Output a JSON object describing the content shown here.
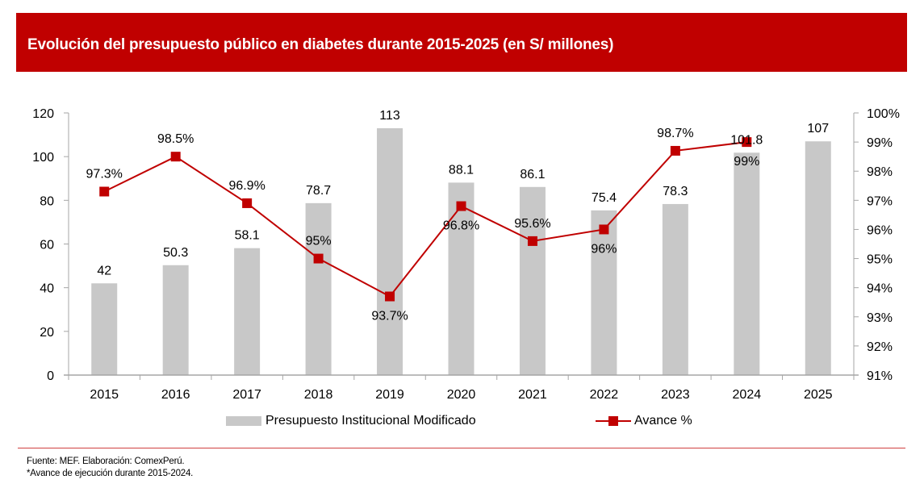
{
  "header": {
    "title": "Evolución del presupuesto público en diabetes durante 2015-2025 (en S/ millones)"
  },
  "colors": {
    "brand_red": "#c00000",
    "bar_gray": "#c8c8c8",
    "axis_gray": "#a6a6a6"
  },
  "chart_data": {
    "type": "bar",
    "title": "Evolución del presupuesto público en diabetes durante 2015-2025 (en S/ millones)",
    "categories": [
      "2015",
      "2016",
      "2017",
      "2018",
      "2019",
      "2020",
      "2021",
      "2022",
      "2023",
      "2024",
      "2025"
    ],
    "series": [
      {
        "name": "Presupuesto Institucional Modificado",
        "type": "bar",
        "axis": "left",
        "values": [
          42,
          50.3,
          58.1,
          78.7,
          113,
          88.1,
          86.1,
          75.4,
          78.3,
          101.8,
          107
        ],
        "labels": [
          "42",
          "50.3",
          "58.1",
          "78.7",
          "113",
          "88.1",
          "86.1",
          "75.4",
          "78.3",
          "101.8",
          "107"
        ]
      },
      {
        "name": "Avance %",
        "type": "line",
        "axis": "right",
        "values": [
          97.3,
          98.5,
          96.9,
          95.0,
          93.7,
          96.8,
          95.6,
          96.0,
          98.7,
          99.0,
          null
        ],
        "labels": [
          "97.3%",
          "98.5%",
          "96.9%",
          "95%",
          "93.7%",
          "96.8%",
          "95.6%",
          "96%",
          "98.7%",
          "99%",
          null
        ],
        "label_position": [
          "above",
          "above",
          "above",
          "above",
          "below",
          "below",
          "above",
          "below",
          "above",
          "below",
          null
        ]
      }
    ],
    "y_left": {
      "range": [
        0,
        120
      ],
      "ticks": [
        0,
        20,
        40,
        60,
        80,
        100,
        120
      ],
      "tick_labels": [
        "0",
        "20",
        "40",
        "60",
        "80",
        "100",
        "120"
      ]
    },
    "y_right": {
      "range": [
        91,
        100
      ],
      "ticks": [
        91,
        92,
        93,
        94,
        95,
        96,
        97,
        98,
        99,
        100
      ],
      "tick_labels": [
        "91%",
        "92%",
        "93%",
        "94%",
        "95%",
        "96%",
        "97%",
        "98%",
        "99%",
        "100%"
      ]
    },
    "xlabel": "",
    "ylabel": "",
    "grid": false,
    "legend": {
      "placement": "bottom",
      "entries": [
        "Presupuesto Institucional Modificado",
        "Avance %"
      ]
    }
  },
  "footer": {
    "source": "Fuente: MEF. Elaboración: ComexPerú.",
    "note": "*Avance de ejecución durante 2015-2024."
  }
}
